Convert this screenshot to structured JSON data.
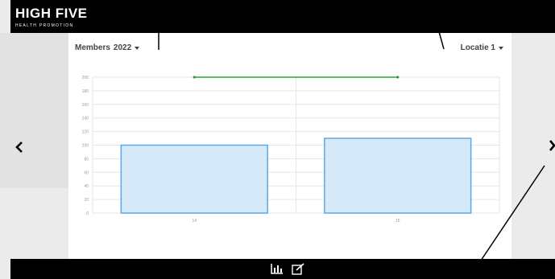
{
  "brand": {
    "name": "HIGH FIVE",
    "tagline": "HEALTH PROMOTION"
  },
  "filters": {
    "metric_label": "Members",
    "year_label": "2022",
    "location_label": "Locatie 1"
  },
  "navigation": {
    "prev_icon": "chevron-left-icon",
    "next_icon": "chevron-right-icon"
  },
  "toolbar": {
    "chart_icon": "bar-chart-icon",
    "edit_icon": "edit-icon"
  },
  "colors": {
    "bar_fill": "#d6e9f9",
    "bar_stroke": "#5aa9e6",
    "line": "#2ca02c",
    "grid": "#e6e6e6"
  },
  "chart_data": {
    "type": "bar",
    "categories": [
      "14",
      "15"
    ],
    "series": [
      {
        "type": "bar",
        "values": [
          100,
          110
        ]
      },
      {
        "type": "line",
        "values": [
          200,
          200
        ]
      }
    ],
    "yticks": [
      0,
      20,
      40,
      60,
      80,
      100,
      120,
      140,
      160,
      180,
      200
    ],
    "ylim": [
      0,
      200
    ],
    "grid": true,
    "legend": "none"
  }
}
